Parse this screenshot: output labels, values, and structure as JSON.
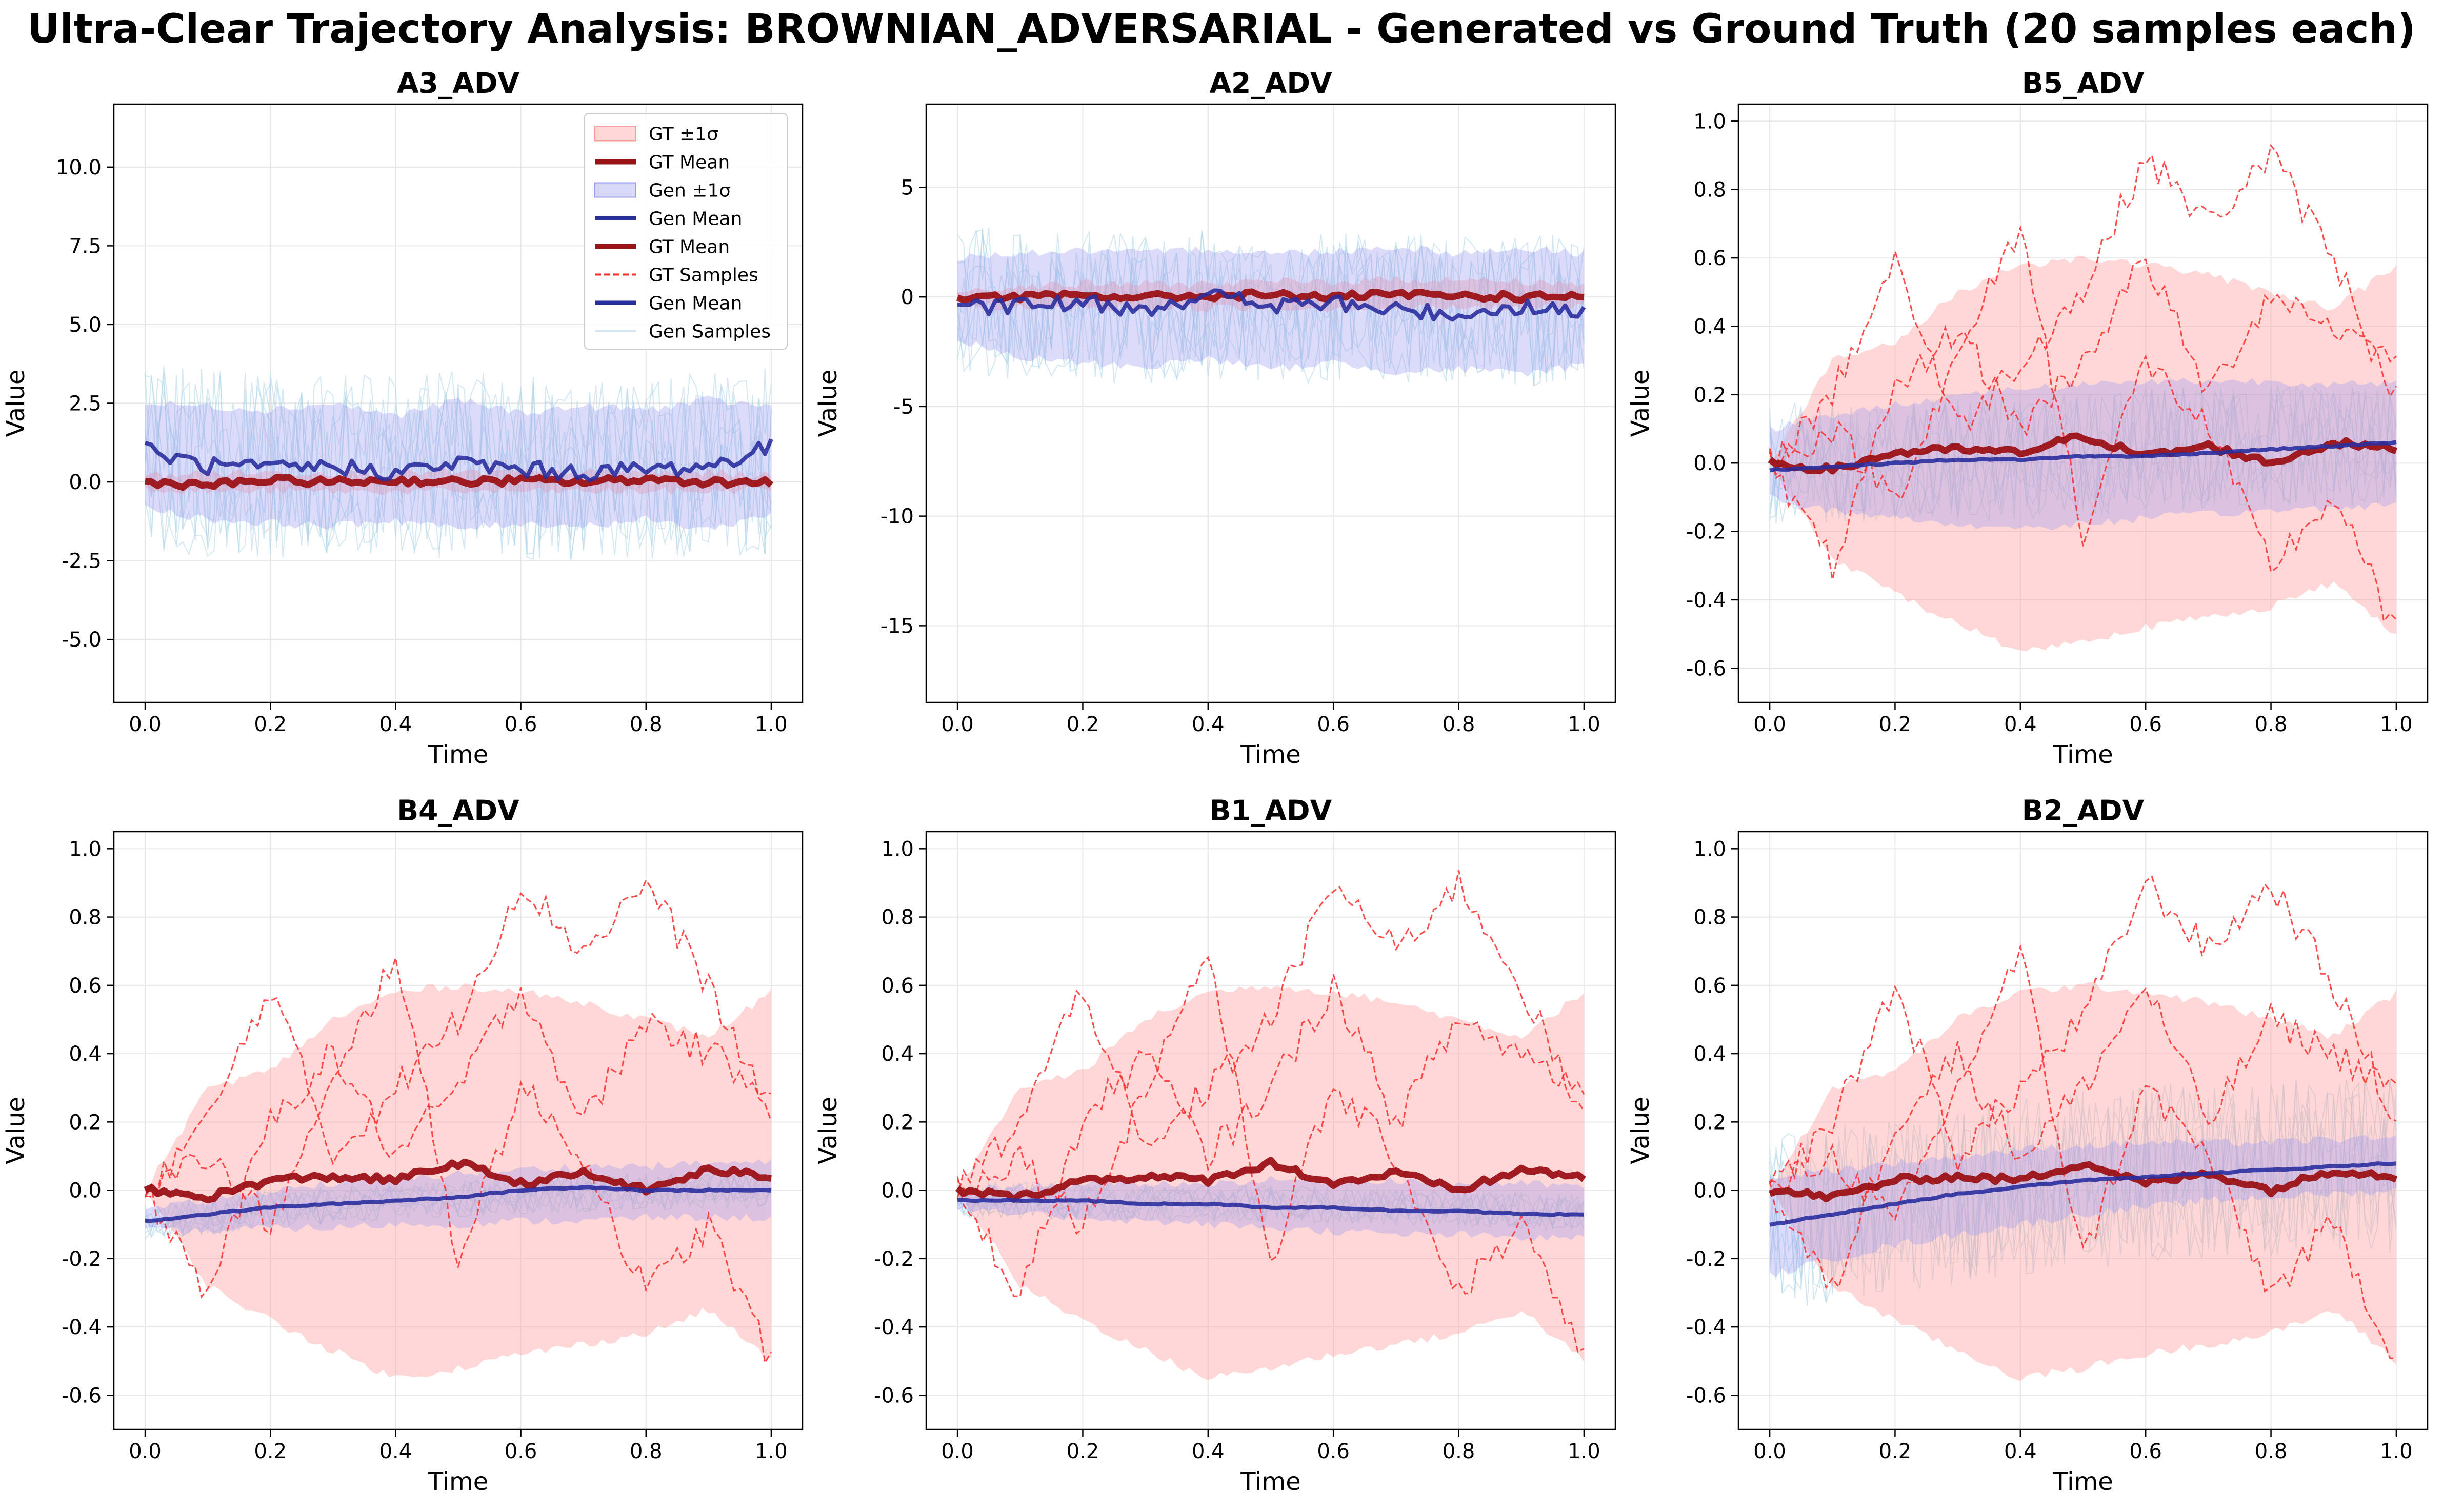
{
  "figure": {
    "title": "Ultra-Clear Trajectory Analysis: BROWNIAN_ADVERSARIAL - Generated vs Ground Truth (20 samples each)"
  },
  "colors": {
    "gt_band": "#ff9a9a",
    "gt_mean": "#9b1216",
    "gt_samples": "#ff2b2b",
    "gen_band": "#9a9af0",
    "gen_mean": "#2a2f9e",
    "gen_samples": "#aed6e8",
    "grid": "#e6e6e6"
  },
  "legend": {
    "entries": [
      {
        "label": "GT ±1σ",
        "kind": "patch",
        "color": "gt_band"
      },
      {
        "label": "GT Mean",
        "kind": "line",
        "color": "gt_mean",
        "width": 5
      },
      {
        "label": "Gen ±1σ",
        "kind": "patch",
        "color": "gen_band"
      },
      {
        "label": "Gen Mean",
        "kind": "line",
        "color": "gen_mean",
        "width": 4
      },
      {
        "label": "GT Mean",
        "kind": "line",
        "color": "gt_mean",
        "width": 5
      },
      {
        "label": "GT Samples",
        "kind": "dash",
        "color": "gt_samples",
        "width": 2
      },
      {
        "label": "Gen Mean",
        "kind": "line",
        "color": "gen_mean",
        "width": 4
      },
      {
        "label": "Gen Samples",
        "kind": "line",
        "color": "gen_samples",
        "width": 1
      }
    ]
  },
  "chart_data": [
    {
      "type": "line",
      "title": "A3_ADV",
      "xlabel": "Time",
      "ylabel": "Value",
      "xlim": [
        -0.05,
        1.05
      ],
      "ylim": [
        -7.0,
        12.0
      ],
      "xticks": [
        "0.0",
        "0.2",
        "0.4",
        "0.6",
        "0.8",
        "1.0"
      ],
      "yticks": [
        "-5.0",
        "-2.5",
        "0.0",
        "2.5",
        "5.0",
        "7.5",
        "10.0"
      ],
      "grid": true,
      "legend": "top-right",
      "x": [
        0.0,
        0.1,
        0.2,
        0.3,
        0.4,
        0.5,
        0.6,
        0.7,
        0.8,
        0.9,
        1.0
      ],
      "series": [
        {
          "name": "GT Mean",
          "values": [
            0.0,
            -0.1,
            0.05,
            0.0,
            0.05,
            0.0,
            0.05,
            0.0,
            0.1,
            0.0,
            0.0
          ]
        },
        {
          "name": "Gen Mean",
          "values": [
            1.0,
            0.5,
            0.4,
            0.5,
            0.3,
            0.6,
            0.4,
            0.3,
            0.4,
            0.5,
            1.1
          ]
        },
        {
          "name": "GT ±1σ",
          "lower": [
            -0.2,
            -0.3,
            -0.3,
            -0.3,
            -0.3,
            -0.3,
            -0.3,
            -0.3,
            -0.3,
            -0.3,
            -0.2
          ],
          "upper": [
            0.2,
            0.3,
            0.3,
            0.3,
            0.3,
            0.3,
            0.3,
            0.3,
            0.3,
            0.3,
            0.2
          ]
        },
        {
          "name": "Gen ±1σ",
          "lower": [
            -0.8,
            -1.2,
            -1.3,
            -1.4,
            -1.2,
            -1.5,
            -1.3,
            -1.4,
            -1.2,
            -1.5,
            -1.0
          ],
          "upper": [
            2.5,
            2.4,
            2.3,
            2.5,
            2.1,
            2.6,
            2.2,
            2.4,
            2.3,
            2.6,
            2.4
          ]
        }
      ]
    },
    {
      "type": "line",
      "title": "A2_ADV",
      "xlabel": "Time",
      "ylabel": "Value",
      "xlim": [
        -0.05,
        1.05
      ],
      "ylim": [
        -18.5,
        8.8
      ],
      "xticks": [
        "0.0",
        "0.2",
        "0.4",
        "0.6",
        "0.8",
        "1.0"
      ],
      "yticks": [
        "-15",
        "-10",
        "-5",
        "0",
        "5"
      ],
      "grid": true,
      "legend": "none",
      "x": [
        0.0,
        0.1,
        0.2,
        0.3,
        0.4,
        0.5,
        0.6,
        0.7,
        0.8,
        0.9,
        1.0
      ],
      "series": [
        {
          "name": "GT Mean",
          "values": [
            0.0,
            0.0,
            0.05,
            0.0,
            0.05,
            0.1,
            0.0,
            0.1,
            0.05,
            0.0,
            0.05
          ]
        },
        {
          "name": "Gen Mean",
          "values": [
            -0.6,
            -0.4,
            -0.3,
            -0.5,
            0.1,
            -0.4,
            -0.3,
            -0.6,
            -0.8,
            -0.4,
            -0.7
          ]
        },
        {
          "name": "GT ±1σ",
          "lower": [
            -0.3,
            -0.5,
            -0.5,
            -0.5,
            -0.5,
            -0.5,
            -0.5,
            -0.5,
            -0.5,
            -0.5,
            -0.4
          ],
          "upper": [
            0.3,
            0.5,
            0.6,
            0.6,
            0.6,
            0.7,
            0.7,
            0.8,
            0.8,
            0.7,
            0.6
          ]
        },
        {
          "name": "Gen ±1σ",
          "lower": [
            -2.0,
            -2.8,
            -3.0,
            -3.2,
            -2.8,
            -3.3,
            -3.0,
            -3.4,
            -3.3,
            -3.5,
            -3.1
          ],
          "upper": [
            1.8,
            2.0,
            2.1,
            2.0,
            2.2,
            2.0,
            2.1,
            2.3,
            2.0,
            2.2,
            2.0
          ]
        }
      ]
    },
    {
      "type": "line",
      "title": "B5_ADV",
      "xlabel": "Time",
      "ylabel": "Value",
      "xlim": [
        -0.05,
        1.05
      ],
      "ylim": [
        -0.7,
        1.05
      ],
      "xticks": [
        "0.0",
        "0.2",
        "0.4",
        "0.6",
        "0.8",
        "1.0"
      ],
      "yticks": [
        "-0.6",
        "-0.4",
        "-0.2",
        "0.0",
        "0.2",
        "0.4",
        "0.6",
        "0.8",
        "1.0"
      ],
      "grid": true,
      "legend": "none",
      "x": [
        0.0,
        0.1,
        0.2,
        0.3,
        0.4,
        0.5,
        0.6,
        0.7,
        0.8,
        0.9,
        1.0
      ],
      "series": [
        {
          "name": "GT Mean",
          "values": [
            0.0,
            -0.02,
            0.03,
            0.04,
            0.03,
            0.08,
            0.02,
            0.05,
            0.0,
            0.06,
            0.04
          ]
        },
        {
          "name": "Gen Mean",
          "values": [
            -0.02,
            -0.01,
            0.0,
            0.01,
            0.01,
            0.02,
            0.02,
            0.03,
            0.04,
            0.05,
            0.06
          ]
        },
        {
          "name": "GT ±1σ",
          "lower": [
            0.0,
            -0.28,
            -0.38,
            -0.47,
            -0.55,
            -0.52,
            -0.48,
            -0.45,
            -0.42,
            -0.35,
            -0.5
          ],
          "upper": [
            0.0,
            0.3,
            0.35,
            0.5,
            0.58,
            0.6,
            0.58,
            0.55,
            0.5,
            0.45,
            0.58
          ]
        },
        {
          "name": "Gen ±1σ",
          "lower": [
            -0.1,
            -0.14,
            -0.16,
            -0.18,
            -0.19,
            -0.18,
            -0.16,
            -0.15,
            -0.14,
            -0.13,
            -0.12
          ],
          "upper": [
            0.1,
            0.14,
            0.17,
            0.2,
            0.22,
            0.23,
            0.24,
            0.24,
            0.24,
            0.23,
            0.23
          ]
        },
        {
          "name": "GT Samples",
          "values": [
            0.0,
            0.2,
            0.6,
            0.1,
            0.3,
            0.5,
            0.9,
            0.7,
            0.9,
            0.6,
            0.2
          ]
        },
        {
          "name": "GT Samples",
          "values": [
            0.0,
            -0.3,
            0.2,
            0.4,
            0.1,
            0.3,
            0.6,
            0.2,
            0.5,
            0.4,
            0.3
          ]
        },
        {
          "name": "GT Samples",
          "values": [
            0.0,
            0.1,
            -0.1,
            0.3,
            0.7,
            -0.2,
            0.3,
            0.1,
            -0.3,
            -0.1,
            -0.5
          ]
        }
      ]
    },
    {
      "type": "line",
      "title": "B4_ADV",
      "xlabel": "Time",
      "ylabel": "Value",
      "xlim": [
        -0.05,
        1.05
      ],
      "ylim": [
        -0.7,
        1.05
      ],
      "xticks": [
        "0.0",
        "0.2",
        "0.4",
        "0.6",
        "0.8",
        "1.0"
      ],
      "yticks": [
        "-0.6",
        "-0.4",
        "-0.2",
        "0.0",
        "0.2",
        "0.4",
        "0.6",
        "0.8",
        "1.0"
      ],
      "grid": true,
      "legend": "none",
      "x": [
        0.0,
        0.1,
        0.2,
        0.3,
        0.4,
        0.5,
        0.6,
        0.7,
        0.8,
        0.9,
        1.0
      ],
      "series": [
        {
          "name": "GT Mean",
          "values": [
            0.0,
            -0.02,
            0.03,
            0.04,
            0.03,
            0.08,
            0.02,
            0.05,
            0.0,
            0.06,
            0.04
          ]
        },
        {
          "name": "Gen Mean",
          "values": [
            -0.09,
            -0.07,
            -0.05,
            -0.04,
            -0.03,
            -0.02,
            0.0,
            0.01,
            0.0,
            0.0,
            0.0
          ]
        },
        {
          "name": "GT ±1σ",
          "lower": [
            0.0,
            -0.28,
            -0.38,
            -0.47,
            -0.55,
            -0.52,
            -0.48,
            -0.45,
            -0.42,
            -0.35,
            -0.5
          ],
          "upper": [
            0.0,
            0.3,
            0.35,
            0.5,
            0.58,
            0.6,
            0.58,
            0.55,
            0.5,
            0.45,
            0.58
          ]
        },
        {
          "name": "Gen ±1σ",
          "lower": [
            -0.12,
            -0.12,
            -0.11,
            -0.11,
            -0.1,
            -0.1,
            -0.09,
            -0.09,
            -0.08,
            -0.08,
            -0.08
          ],
          "upper": [
            -0.06,
            -0.03,
            0.0,
            0.02,
            0.03,
            0.05,
            0.06,
            0.07,
            0.07,
            0.08,
            0.08
          ]
        },
        {
          "name": "GT Samples",
          "values": [
            0.0,
            0.2,
            0.6,
            0.1,
            0.3,
            0.5,
            0.9,
            0.7,
            0.9,
            0.6,
            0.2
          ]
        },
        {
          "name": "GT Samples",
          "values": [
            0.0,
            -0.3,
            0.2,
            0.4,
            0.1,
            0.3,
            0.6,
            0.2,
            0.5,
            0.4,
            0.3
          ]
        },
        {
          "name": "GT Samples",
          "values": [
            0.0,
            0.1,
            -0.1,
            0.3,
            0.7,
            -0.2,
            0.3,
            0.1,
            -0.3,
            -0.1,
            -0.5
          ]
        }
      ]
    },
    {
      "type": "line",
      "title": "B1_ADV",
      "xlabel": "Time",
      "ylabel": "Value",
      "xlim": [
        -0.05,
        1.05
      ],
      "ylim": [
        -0.7,
        1.05
      ],
      "xticks": [
        "0.0",
        "0.2",
        "0.4",
        "0.6",
        "0.8",
        "1.0"
      ],
      "yticks": [
        "-0.6",
        "-0.4",
        "-0.2",
        "0.0",
        "0.2",
        "0.4",
        "0.6",
        "0.8",
        "1.0"
      ],
      "grid": true,
      "legend": "none",
      "x": [
        0.0,
        0.1,
        0.2,
        0.3,
        0.4,
        0.5,
        0.6,
        0.7,
        0.8,
        0.9,
        1.0
      ],
      "series": [
        {
          "name": "GT Mean",
          "values": [
            0.0,
            -0.02,
            0.03,
            0.04,
            0.03,
            0.08,
            0.02,
            0.05,
            0.0,
            0.06,
            0.04
          ]
        },
        {
          "name": "Gen Mean",
          "values": [
            -0.03,
            -0.03,
            -0.03,
            -0.04,
            -0.04,
            -0.05,
            -0.05,
            -0.06,
            -0.06,
            -0.07,
            -0.07
          ]
        },
        {
          "name": "GT ±1σ",
          "lower": [
            0.0,
            -0.28,
            -0.38,
            -0.47,
            -0.55,
            -0.52,
            -0.48,
            -0.45,
            -0.42,
            -0.35,
            -0.5
          ],
          "upper": [
            0.0,
            0.3,
            0.35,
            0.5,
            0.58,
            0.6,
            0.58,
            0.55,
            0.5,
            0.45,
            0.58
          ]
        },
        {
          "name": "Gen ±1σ",
          "lower": [
            -0.06,
            -0.07,
            -0.08,
            -0.09,
            -0.1,
            -0.11,
            -0.12,
            -0.13,
            -0.13,
            -0.14,
            -0.14
          ],
          "upper": [
            0.0,
            0.01,
            0.02,
            0.02,
            0.02,
            0.03,
            0.03,
            0.03,
            0.02,
            0.02,
            0.01
          ]
        },
        {
          "name": "GT Samples",
          "values": [
            0.0,
            0.2,
            0.6,
            0.1,
            0.3,
            0.5,
            0.9,
            0.7,
            0.9,
            0.6,
            0.2
          ]
        },
        {
          "name": "GT Samples",
          "values": [
            0.0,
            -0.3,
            0.2,
            0.4,
            0.1,
            0.3,
            0.6,
            0.2,
            0.5,
            0.4,
            0.3
          ]
        },
        {
          "name": "GT Samples",
          "values": [
            0.0,
            0.1,
            -0.1,
            0.3,
            0.7,
            -0.2,
            0.3,
            0.1,
            -0.3,
            -0.1,
            -0.5
          ]
        }
      ]
    },
    {
      "type": "line",
      "title": "B2_ADV",
      "xlabel": "Time",
      "ylabel": "Value",
      "xlim": [
        -0.05,
        1.05
      ],
      "ylim": [
        -0.7,
        1.05
      ],
      "xticks": [
        "0.0",
        "0.2",
        "0.4",
        "0.6",
        "0.8",
        "1.0"
      ],
      "yticks": [
        "-0.6",
        "-0.4",
        "-0.2",
        "0.0",
        "0.2",
        "0.4",
        "0.6",
        "0.8",
        "1.0"
      ],
      "grid": true,
      "legend": "none",
      "x": [
        0.0,
        0.1,
        0.2,
        0.3,
        0.4,
        0.5,
        0.6,
        0.7,
        0.8,
        0.9,
        1.0
      ],
      "series": [
        {
          "name": "GT Mean",
          "values": [
            0.0,
            -0.02,
            0.03,
            0.04,
            0.03,
            0.08,
            0.02,
            0.05,
            0.0,
            0.06,
            0.04
          ]
        },
        {
          "name": "Gen Mean",
          "values": [
            -0.1,
            -0.07,
            -0.04,
            -0.01,
            0.01,
            0.03,
            0.04,
            0.05,
            0.06,
            0.07,
            0.08
          ]
        },
        {
          "name": "GT ±1σ",
          "lower": [
            0.0,
            -0.28,
            -0.38,
            -0.47,
            -0.55,
            -0.52,
            -0.48,
            -0.45,
            -0.42,
            -0.35,
            -0.5
          ],
          "upper": [
            0.0,
            0.3,
            0.35,
            0.5,
            0.58,
            0.6,
            0.58,
            0.55,
            0.5,
            0.45,
            0.58
          ]
        },
        {
          "name": "Gen ±1σ",
          "lower": [
            -0.25,
            -0.2,
            -0.16,
            -0.13,
            -0.1,
            -0.07,
            -0.05,
            -0.03,
            -0.02,
            -0.01,
            0.0
          ],
          "upper": [
            0.04,
            0.06,
            0.08,
            0.1,
            0.12,
            0.13,
            0.14,
            0.14,
            0.14,
            0.15,
            0.15
          ]
        },
        {
          "name": "GT Samples",
          "values": [
            0.0,
            0.2,
            0.6,
            0.1,
            0.3,
            0.5,
            0.9,
            0.7,
            0.9,
            0.6,
            0.2
          ]
        },
        {
          "name": "GT Samples",
          "values": [
            0.0,
            -0.3,
            0.2,
            0.4,
            0.1,
            0.3,
            0.6,
            0.2,
            0.5,
            0.4,
            0.3
          ]
        },
        {
          "name": "GT Samples",
          "values": [
            0.0,
            0.1,
            -0.1,
            0.3,
            0.7,
            -0.2,
            0.3,
            0.1,
            -0.3,
            -0.1,
            -0.5
          ]
        }
      ]
    }
  ]
}
